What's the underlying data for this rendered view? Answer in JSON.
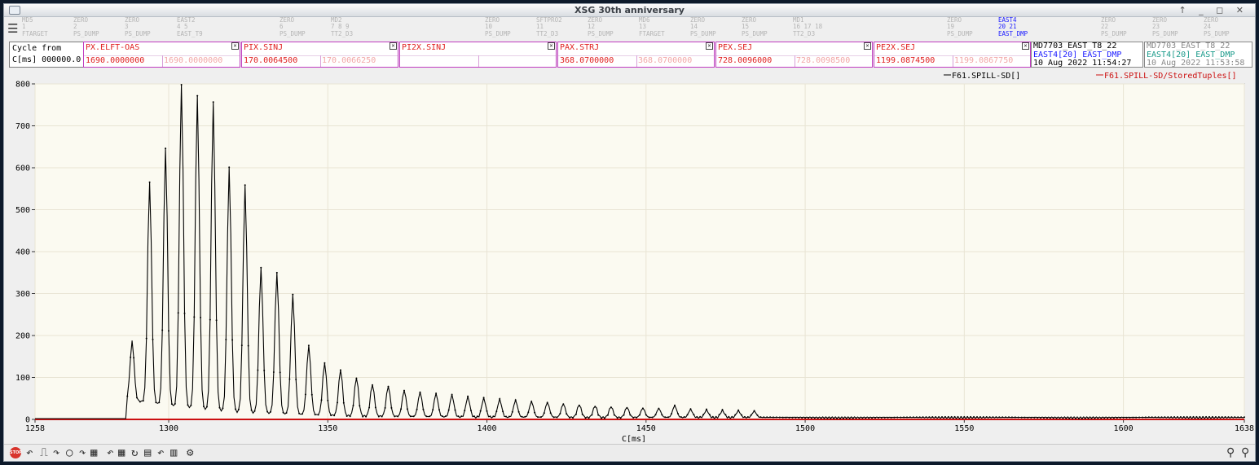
{
  "window": {
    "title": "XSG 30th anniversary"
  },
  "cycles": [
    {
      "l1": "MD5",
      "l2": "1",
      "l3": "FTARGET",
      "active": false
    },
    {
      "l1": "ZERO",
      "l2": "2",
      "l3": "PS_DUMP",
      "active": false
    },
    {
      "l1": "ZERO",
      "l2": "3",
      "l3": "PS_DUMP",
      "active": false
    },
    {
      "l1": "EAST2",
      "l2": "4 5",
      "l3": "EAST_T9",
      "active": false
    },
    {
      "l1": "ZERO",
      "l2": "6",
      "l3": "PS_DUMP",
      "active": false
    },
    {
      "l1": "MD2",
      "l2": "7 8 9",
      "l3": "TT2_D3",
      "active": false
    },
    {
      "l1": "ZERO",
      "l2": "10",
      "l3": "PS_DUMP",
      "active": false
    },
    {
      "l1": "SFTPRO2",
      "l2": "11",
      "l3": "TT2_D3",
      "active": false
    },
    {
      "l1": "ZERO",
      "l2": "12",
      "l3": "PS_DUMP",
      "active": false
    },
    {
      "l1": "MD6",
      "l2": "13",
      "l3": "FTARGET",
      "active": false
    },
    {
      "l1": "ZERO",
      "l2": "14",
      "l3": "PS_DUMP",
      "active": false
    },
    {
      "l1": "ZERO",
      "l2": "15",
      "l3": "PS_DUMP",
      "active": false
    },
    {
      "l1": "MD1",
      "l2": "16 17 18",
      "l3": "TT2_D3",
      "active": false
    },
    {
      "l1": "ZERO",
      "l2": "19",
      "l3": "PS_DUMP",
      "active": false
    },
    {
      "l1": "EAST4",
      "l2": "20 21",
      "l3": "EAST_DMP",
      "active": true
    },
    {
      "l1": "ZERO",
      "l2": "22",
      "l3": "PS_DUMP",
      "active": false
    },
    {
      "l1": "ZERO",
      "l2": "23",
      "l3": "PS_DUMP",
      "active": false
    },
    {
      "l1": "ZERO",
      "l2": "24",
      "l3": "PS_DUMP",
      "active": false
    }
  ],
  "cycle_from": {
    "line1": "Cycle from",
    "line2": "C[ms] 000000.0"
  },
  "params": [
    {
      "name": "PX.ELFT-OAS",
      "value": "1690.0000000",
      "ref": "1690.0000000"
    },
    {
      "name": "PIX.SINJ",
      "value": "170.0064500",
      "ref": "170.0066250"
    },
    {
      "name": "PI2X.SINJ",
      "value": "",
      "ref": ""
    },
    {
      "name": "PAX.STRJ",
      "value": "368.0700000",
      "ref": "368.0700000"
    },
    {
      "name": "PEX.SEJ",
      "value": "728.0096000",
      "ref": "728.0098500"
    },
    {
      "name": "PE2X.SEJ",
      "value": "1199.0874500",
      "ref": "1199.0867750"
    }
  ],
  "info_current": {
    "l1": "MD7703_EAST_T8_22",
    "l2": "EAST4[20] EAST_DMP",
    "l3": "10 Aug 2022 11:54:27"
  },
  "info_stored": {
    "l1": "MD7703_EAST_T8_22",
    "l2": "EAST4[20] EAST_DMP",
    "l3": "10 Aug 2022 11:53:58"
  },
  "legend": {
    "current": "F61.SPILL-SD[]",
    "stored": "F61.SPILL-SD/StoredTuples[]"
  },
  "colors": {
    "current": "#000000",
    "stored": "#cc1010",
    "accent": "#c03cc0"
  },
  "chart_data": {
    "type": "line",
    "xlabel": "C[ms]",
    "ylabel": "",
    "xlim": [
      1258,
      1638
    ],
    "ylim": [
      0,
      800
    ],
    "xticks": [
      1258,
      1300,
      1350,
      1400,
      1450,
      1500,
      1550,
      1600,
      1638
    ],
    "yticks": [
      0,
      100,
      200,
      300,
      400,
      500,
      600,
      700,
      800
    ],
    "grid": true,
    "peaks": [
      {
        "x": 1288.5,
        "y": 140
      },
      {
        "x": 1294,
        "y": 527
      },
      {
        "x": 1299,
        "y": 612
      },
      {
        "x": 1304,
        "y": 768
      },
      {
        "x": 1309,
        "y": 745
      },
      {
        "x": 1314,
        "y": 733
      },
      {
        "x": 1319,
        "y": 580
      },
      {
        "x": 1324,
        "y": 540
      },
      {
        "x": 1329,
        "y": 345
      },
      {
        "x": 1334,
        "y": 335
      },
      {
        "x": 1339,
        "y": 285
      },
      {
        "x": 1344,
        "y": 165
      },
      {
        "x": 1349,
        "y": 125
      },
      {
        "x": 1354,
        "y": 110
      },
      {
        "x": 1359,
        "y": 92
      },
      {
        "x": 1364,
        "y": 76
      },
      {
        "x": 1369,
        "y": 72
      },
      {
        "x": 1374,
        "y": 62
      },
      {
        "x": 1379,
        "y": 58
      },
      {
        "x": 1384,
        "y": 55
      },
      {
        "x": 1389,
        "y": 52
      },
      {
        "x": 1394,
        "y": 48
      },
      {
        "x": 1399,
        "y": 45
      },
      {
        "x": 1404,
        "y": 42
      },
      {
        "x": 1409,
        "y": 40
      },
      {
        "x": 1414,
        "y": 37
      },
      {
        "x": 1419,
        "y": 35
      },
      {
        "x": 1424,
        "y": 32
      },
      {
        "x": 1429,
        "y": 30
      },
      {
        "x": 1434,
        "y": 28
      },
      {
        "x": 1439,
        "y": 26
      },
      {
        "x": 1444,
        "y": 24
      },
      {
        "x": 1449,
        "y": 22
      },
      {
        "x": 1454,
        "y": 21
      },
      {
        "x": 1459,
        "y": 28
      },
      {
        "x": 1464,
        "y": 19
      },
      {
        "x": 1469,
        "y": 18
      },
      {
        "x": 1474,
        "y": 17
      },
      {
        "x": 1479,
        "y": 16
      },
      {
        "x": 1484,
        "y": 15
      }
    ],
    "spill_start": 1287,
    "baseline": 2,
    "series": [
      {
        "name": "F61.SPILL-SD[]",
        "role": "current"
      },
      {
        "name": "F61.SPILL-SD/StoredTuples[]",
        "role": "stored"
      }
    ]
  }
}
